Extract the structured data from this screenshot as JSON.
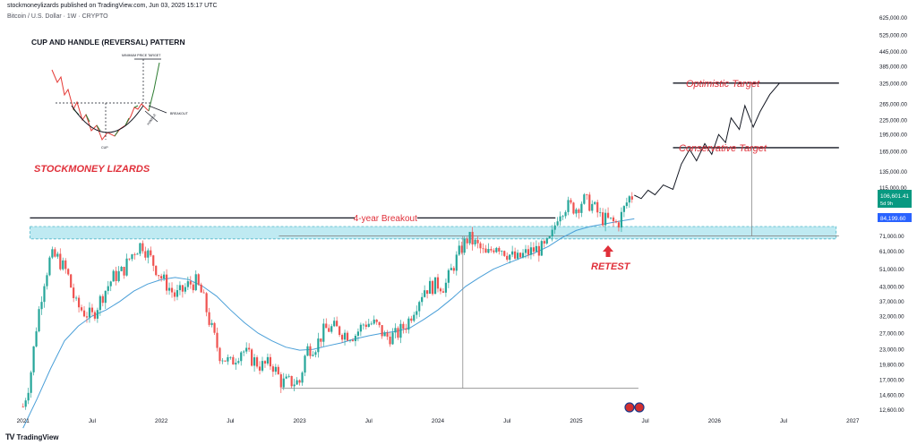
{
  "header": {
    "publisher_line": "stockmoneylizards published on TradingView.com, Jun 03, 2025 15:17 UTC",
    "symbol_line": "Bitcoin / U.S. Dollar · 1W · CRYPTO"
  },
  "footer": {
    "logo_glyph": "TV",
    "brand": "TradingView"
  },
  "annotations": {
    "pattern_title": "CUP AND HANDLE (REVERSAL) PATTERN",
    "brand_overlay": "STOCKMONEY LIZARDS",
    "breakout_label": "4-year Breakout",
    "retest_label": "RETEST",
    "conservative_label": "Conservative Target",
    "optimistic_label": "Optimistic Target",
    "inset_min_price": "MINIMUM PRICE TARGET",
    "inset_breakout": "BREAKOUT",
    "inset_handle": "HANDLE",
    "inset_cup": "CUP"
  },
  "price_badges": {
    "current_price": "106,601.41",
    "countdown": "5d 9h",
    "ma_value": "84,199.60"
  },
  "colors": {
    "up": "#26a69a",
    "down": "#ef5350",
    "ma": "#4a9fd8",
    "zone_fill": "#bfeaf2",
    "zone_border": "#4fb6c9",
    "annotation_red": "#e0303a",
    "price_badge": "#089981",
    "ma_badge": "#2962ff"
  },
  "chart_data": {
    "type": "candlestick",
    "scale": "log",
    "x_ticks": [
      "2021",
      "Jul",
      "2022",
      "Jul",
      "2023",
      "Jul",
      "2024",
      "Jul",
      "2025",
      "Jul",
      "2026",
      "Jul",
      "2027"
    ],
    "y_ticks": [
      "625,000.00",
      "525,000.00",
      "445,000.00",
      "385,000.00",
      "325,000.00",
      "265,000.00",
      "225,000.00",
      "195,000.00",
      "165,000.00",
      "135,000.00",
      "115,000.00",
      "71,000.00",
      "61,000.00",
      "51,000.00",
      "43,000.00",
      "37,000.00",
      "32,000.00",
      "27,000.00",
      "23,000.00",
      "19,800.00",
      "17,000.00",
      "14,600.00",
      "12,600.00"
    ],
    "ylim": [
      11800,
      680000
    ],
    "xlim": [
      2020.95,
      2027.05
    ],
    "price_points": [
      [
        2021.0,
        13000
      ],
      [
        2021.05,
        17000
      ],
      [
        2021.1,
        30000
      ],
      [
        2021.15,
        45000
      ],
      [
        2021.2,
        58000
      ],
      [
        2021.25,
        57000
      ],
      [
        2021.32,
        49000
      ],
      [
        2021.38,
        36000
      ],
      [
        2021.45,
        33000
      ],
      [
        2021.5,
        32000
      ],
      [
        2021.58,
        40000
      ],
      [
        2021.65,
        47000
      ],
      [
        2021.72,
        50000
      ],
      [
        2021.8,
        61000
      ],
      [
        2021.86,
        66000
      ],
      [
        2021.92,
        57000
      ],
      [
        2022.0,
        47000
      ],
      [
        2022.05,
        43000
      ],
      [
        2022.1,
        39000
      ],
      [
        2022.15,
        41000
      ],
      [
        2022.2,
        44000
      ],
      [
        2022.25,
        45000
      ],
      [
        2022.3,
        39000
      ],
      [
        2022.35,
        30000
      ],
      [
        2022.42,
        22000
      ],
      [
        2022.5,
        20000
      ],
      [
        2022.58,
        23000
      ],
      [
        2022.65,
        21000
      ],
      [
        2022.72,
        19500
      ],
      [
        2022.8,
        20000
      ],
      [
        2022.87,
        16500
      ],
      [
        2022.92,
        16600
      ],
      [
        2023.0,
        16600
      ],
      [
        2023.05,
        23000
      ],
      [
        2023.12,
        24000
      ],
      [
        2023.18,
        28000
      ],
      [
        2023.25,
        28500
      ],
      [
        2023.32,
        27000
      ],
      [
        2023.4,
        26500
      ],
      [
        2023.47,
        30000
      ],
      [
        2023.55,
        29500
      ],
      [
        2023.62,
        26000
      ],
      [
        2023.7,
        26500
      ],
      [
        2023.78,
        30000
      ],
      [
        2023.83,
        35000
      ],
      [
        2023.9,
        42000
      ],
      [
        2024.0,
        44000
      ],
      [
        2024.05,
        43000
      ],
      [
        2024.1,
        51000
      ],
      [
        2024.17,
        63000
      ],
      [
        2024.22,
        70000
      ],
      [
        2024.3,
        63000
      ],
      [
        2024.35,
        58000
      ],
      [
        2024.42,
        66000
      ],
      [
        2024.5,
        60000
      ],
      [
        2024.57,
        56000
      ],
      [
        2024.62,
        59000
      ],
      [
        2024.7,
        62000
      ],
      [
        2024.77,
        63000
      ],
      [
        2024.82,
        69000
      ],
      [
        2024.87,
        90000
      ],
      [
        2024.92,
        96000
      ],
      [
        2025.0,
        94000
      ],
      [
        2025.05,
        102000
      ],
      [
        2025.12,
        96000
      ],
      [
        2025.18,
        85000
      ],
      [
        2025.25,
        82000
      ],
      [
        2025.3,
        80000
      ],
      [
        2025.35,
        94000
      ],
      [
        2025.38,
        104000
      ],
      [
        2025.42,
        106600
      ]
    ],
    "ma_points": [
      [
        2021.0,
        10500
      ],
      [
        2021.1,
        14000
      ],
      [
        2021.2,
        19000
      ],
      [
        2021.3,
        25000
      ],
      [
        2021.4,
        29000
      ],
      [
        2021.5,
        32000
      ],
      [
        2021.6,
        34000
      ],
      [
        2021.7,
        37000
      ],
      [
        2021.8,
        41000
      ],
      [
        2021.9,
        44000
      ],
      [
        2022.0,
        46000
      ],
      [
        2022.1,
        47000
      ],
      [
        2022.2,
        46000
      ],
      [
        2022.3,
        43000
      ],
      [
        2022.4,
        39000
      ],
      [
        2022.5,
        34000
      ],
      [
        2022.6,
        30000
      ],
      [
        2022.7,
        27000
      ],
      [
        2022.8,
        25000
      ],
      [
        2022.9,
        23500
      ],
      [
        2023.0,
        22800
      ],
      [
        2023.1,
        23000
      ],
      [
        2023.2,
        23800
      ],
      [
        2023.3,
        24500
      ],
      [
        2023.4,
        25500
      ],
      [
        2023.5,
        26300
      ],
      [
        2023.6,
        27000
      ],
      [
        2023.7,
        27500
      ],
      [
        2023.8,
        28500
      ],
      [
        2023.9,
        31000
      ],
      [
        2024.0,
        34000
      ],
      [
        2024.1,
        38000
      ],
      [
        2024.2,
        43000
      ],
      [
        2024.3,
        47000
      ],
      [
        2024.4,
        51000
      ],
      [
        2024.5,
        54000
      ],
      [
        2024.6,
        57000
      ],
      [
        2024.7,
        60000
      ],
      [
        2024.8,
        64000
      ],
      [
        2024.9,
        70000
      ],
      [
        2025.0,
        75000
      ],
      [
        2025.1,
        78000
      ],
      [
        2025.2,
        80000
      ],
      [
        2025.3,
        82000
      ],
      [
        2025.42,
        84200
      ]
    ],
    "projection_points": [
      [
        2025.42,
        106600
      ],
      [
        2025.47,
        103000
      ],
      [
        2025.52,
        112000
      ],
      [
        2025.57,
        107000
      ],
      [
        2025.63,
        118000
      ],
      [
        2025.7,
        113000
      ],
      [
        2025.76,
        145000
      ],
      [
        2025.82,
        168000
      ],
      [
        2025.87,
        150000
      ],
      [
        2025.93,
        178000
      ],
      [
        2025.98,
        160000
      ],
      [
        2026.03,
        195000
      ],
      [
        2026.08,
        180000
      ],
      [
        2026.12,
        230000
      ],
      [
        2026.18,
        205000
      ],
      [
        2026.22,
        260000
      ],
      [
        2026.28,
        210000
      ],
      [
        2026.33,
        245000
      ],
      [
        2026.4,
        290000
      ],
      [
        2026.47,
        325000
      ]
    ],
    "levels": {
      "breakout_line": 85000,
      "resistance_zone": [
        69000,
        78000
      ],
      "zone_line": 71000,
      "conservative_target": 171000,
      "optimistic_target": 325000,
      "base_line": 15600
    }
  }
}
